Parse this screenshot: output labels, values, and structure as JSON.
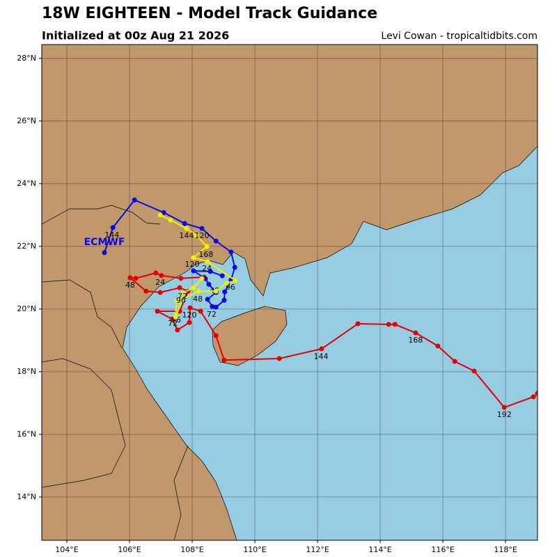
{
  "header": {
    "title": "18W EIGHTEEN - Model Track Guidance",
    "subtitle": "Initialized at 00z Aug 21 2026",
    "credit": "Levi Cowan - tropicaltidbits.com"
  },
  "map": {
    "lonlim": [
      103.2,
      119.02
    ],
    "latlim": [
      12.62,
      28.44
    ],
    "lonticks": [
      {
        "value": 104,
        "label": "104°E"
      },
      {
        "value": 106,
        "label": "106°E"
      },
      {
        "value": 108,
        "label": "108°E"
      },
      {
        "value": 110,
        "label": "110°E"
      },
      {
        "value": 112,
        "label": "112°E"
      },
      {
        "value": 114,
        "label": "114°E"
      },
      {
        "value": 116,
        "label": "116°E"
      },
      {
        "value": 118,
        "label": "118°E"
      }
    ],
    "latticks": [
      {
        "value": 14,
        "label": "14°N"
      },
      {
        "value": 16,
        "label": "16°N"
      },
      {
        "value": 18,
        "label": "18°N"
      },
      {
        "value": 20,
        "label": "20°N"
      },
      {
        "value": 22,
        "label": "22°N"
      },
      {
        "value": 24,
        "label": "24°N"
      },
      {
        "value": 26,
        "label": "26°N"
      },
      {
        "value": 28,
        "label": "28°N"
      }
    ],
    "grid": true,
    "land_color": "#c0986c",
    "sea_color": "#96cde2"
  },
  "tracks": [
    {
      "color": "#e50000",
      "lon": [
        108.38,
        107.64,
        107.02,
        106.84,
        106.2,
        106.02,
        106.53,
        106.98,
        107.6,
        107.87,
        107.6,
        106.89,
        107.36,
        107.53,
        107.91,
        107.93,
        108.27,
        108.76,
        109.02,
        110.78,
        112.13,
        113.29,
        114.27,
        114.47,
        115.13,
        115.84,
        116.38,
        117.0,
        117.96,
        118.89,
        119.02
      ],
      "lat": [
        21.02,
        20.98,
        21.07,
        21.15,
        20.98,
        21.0,
        20.57,
        20.53,
        20.68,
        20.57,
        19.93,
        19.93,
        19.68,
        19.33,
        19.57,
        20.04,
        19.93,
        19.15,
        18.37,
        18.42,
        18.73,
        19.53,
        19.51,
        19.51,
        19.24,
        18.82,
        18.33,
        18.02,
        16.86,
        17.2,
        17.31
      ],
      "labels": [
        {
          "hour": 24,
          "lon": 106.98,
          "lat": 20.84
        },
        {
          "hour": 48,
          "lon": 106.02,
          "lat": 20.75
        },
        {
          "hour": 72,
          "lon": 107.38,
          "lat": 19.53
        },
        {
          "hour": 96,
          "lon": 107.49,
          "lat": 19.64
        },
        {
          "hour": 120,
          "lon": 107.91,
          "lat": 19.8
        },
        {
          "hour": 144,
          "lon": 112.11,
          "lat": 18.48
        },
        {
          "hour": 168,
          "lon": 115.13,
          "lat": 19.0
        },
        {
          "hour": 192,
          "lon": 117.96,
          "lat": 16.62
        }
      ]
    },
    {
      "name": "ECMWF",
      "color": "#0a0adf",
      "lon": [
        108.96,
        108.58,
        108.04,
        108.42,
        108.53,
        108.76,
        108.49,
        108.64,
        108.76,
        109.02,
        109.04,
        109.24,
        109.36,
        109.24,
        108.76,
        108.31,
        107.76,
        107.09,
        106.16,
        105.47,
        105.2
      ],
      "lat": [
        21.06,
        21.2,
        21.22,
        20.97,
        20.79,
        20.53,
        20.31,
        20.08,
        20.06,
        20.28,
        20.55,
        20.93,
        21.33,
        21.82,
        22.17,
        22.57,
        22.73,
        23.08,
        23.48,
        22.6,
        21.8
      ],
      "labels": [
        {
          "hour": 48,
          "lon": 108.71,
          "lat": 20.57
        },
        {
          "hour": 72,
          "lon": 108.62,
          "lat": 19.82
        },
        {
          "hour": 96,
          "lon": 109.22,
          "lat": 20.68
        },
        {
          "hour": 120,
          "lon": 108.0,
          "lat": 21.42
        },
        {
          "hour": 144,
          "lon": 105.44,
          "lat": 22.35
        }
      ]
    },
    {
      "color": "#f0f000",
      "lon": [
        108.31,
        108.04,
        107.69,
        107.51,
        107.47,
        107.69,
        108.2,
        108.76,
        109.09,
        109.38,
        108.49,
        108.04,
        108.47,
        108.13,
        107.82,
        107.31,
        106.98
      ],
      "lat": [
        20.97,
        20.68,
        20.51,
        20.26,
        19.75,
        20.31,
        20.57,
        20.57,
        20.82,
        20.91,
        21.51,
        21.64,
        22.0,
        22.35,
        22.57,
        22.84,
        23.0
      ],
      "labels": [
        {
          "hour": 24,
          "lon": 108.47,
          "lat": 21.28
        },
        {
          "hour": 48,
          "lon": 108.18,
          "lat": 20.31
        },
        {
          "hour": 72,
          "lon": 107.69,
          "lat": 20.4
        },
        {
          "hour": 96,
          "lon": 107.64,
          "lat": 20.26
        },
        {
          "hour": 120,
          "lon": 108.31,
          "lat": 22.33
        },
        {
          "hour": 144,
          "lon": 107.82,
          "lat": 22.33
        },
        {
          "hour": 168,
          "lon": 108.44,
          "lat": 21.73
        }
      ]
    }
  ]
}
